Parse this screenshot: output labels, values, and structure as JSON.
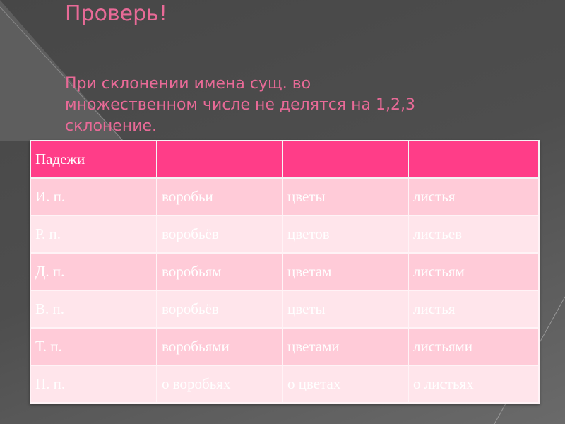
{
  "slide": {
    "title": "Проверь!",
    "text": "При склонении имена сущ. во множественном числе не делятся на 1,2,3 склонение."
  },
  "table": {
    "header": [
      "Падежи",
      "",
      "",
      ""
    ],
    "rows": [
      [
        "И. п.",
        "воробьи",
        "цветы",
        "листья"
      ],
      [
        "Р. п.",
        "воробьёв",
        "цветов",
        "листьев"
      ],
      [
        "Д. п.",
        "воробьям",
        "цветам",
        "листьям"
      ],
      [
        "В. п.",
        "воробьёв",
        "цветы",
        "листья"
      ],
      [
        "Т. п.",
        "воробьями",
        "цветами",
        "листьями"
      ],
      [
        "П. п.",
        "о воробьях",
        "о цветах",
        "о листьях"
      ]
    ]
  },
  "colors": {
    "accent": "#e86a97",
    "header": "#ff3d88",
    "row_dark": "#ffcbd8",
    "row_light": "#ffe5eb"
  }
}
